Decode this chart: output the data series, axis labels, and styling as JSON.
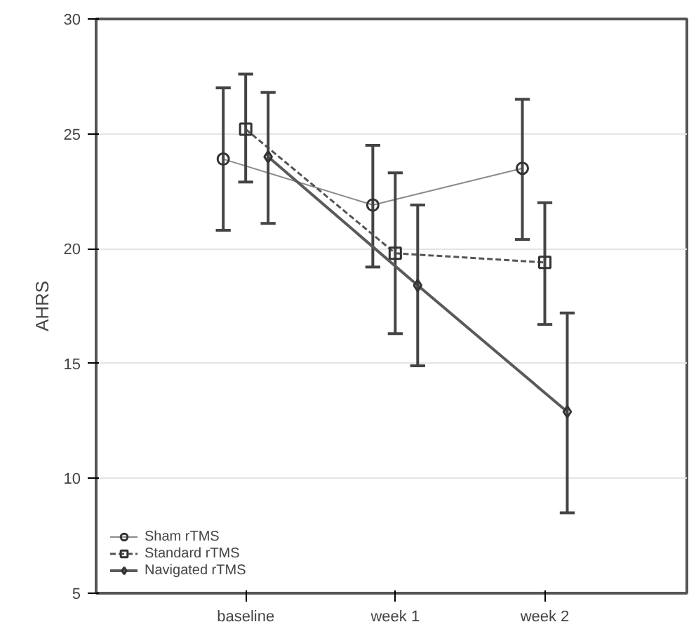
{
  "chart_data": {
    "type": "line",
    "ylabel": "AHRS",
    "categories": [
      "baseline",
      "week 1",
      "week 2"
    ],
    "series": [
      {
        "name": "Sham rTMS",
        "color": "#8a8a8a",
        "marker": "circle",
        "line_style": "solid",
        "values": [
          23.9,
          21.9,
          23.5
        ],
        "errors": [
          [
            20.8,
            27.0
          ],
          [
            19.2,
            24.5
          ],
          [
            20.4,
            26.5
          ]
        ]
      },
      {
        "name": "Standard rTMS",
        "color": "#555555",
        "marker": "square",
        "line_style": "dashed",
        "values": [
          25.2,
          19.8,
          19.4
        ],
        "errors": [
          [
            22.9,
            27.6
          ],
          [
            16.3,
            23.3
          ],
          [
            16.7,
            22.0
          ]
        ]
      },
      {
        "name": "Navigated rTMS",
        "color": "#5a5a5a",
        "marker": "diamond",
        "line_style": "solid",
        "values": [
          24.0,
          18.4,
          12.9
        ],
        "errors": [
          [
            21.1,
            26.8
          ],
          [
            14.9,
            21.9
          ],
          [
            8.5,
            17.2
          ]
        ]
      }
    ],
    "ylim": [
      5,
      30
    ],
    "yticks": [
      5,
      10,
      15,
      20,
      25,
      30
    ],
    "grid": "y",
    "legend": "bottom left"
  }
}
